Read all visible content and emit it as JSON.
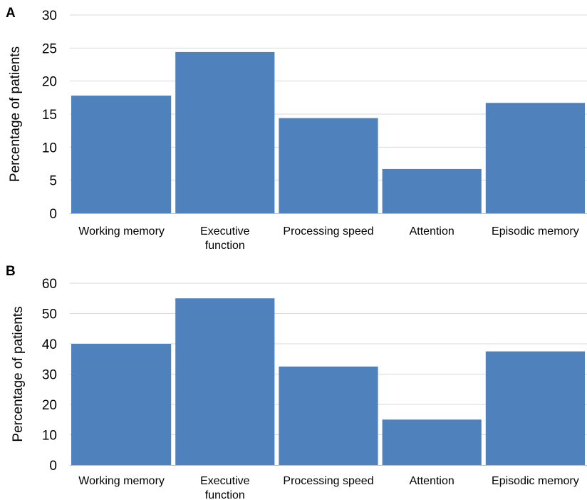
{
  "chart_data": [
    {
      "type": "bar",
      "panel": "A",
      "ylabel": "Percentage of patients",
      "xlabel": "",
      "title": "",
      "categories": [
        "Working memory",
        "Executive function",
        "Processing speed",
        "Attention",
        "Episodic memory"
      ],
      "values": [
        17.8,
        24.4,
        14.4,
        6.7,
        16.7
      ],
      "ylim": [
        0,
        30
      ],
      "yticks": [
        0,
        5,
        10,
        15,
        20,
        25,
        30
      ],
      "grid": true,
      "bar_color": "#4f81bd"
    },
    {
      "type": "bar",
      "panel": "B",
      "ylabel": "Percentage of patients",
      "xlabel": "",
      "title": "",
      "categories": [
        "Working memory",
        "Executive function",
        "Processing speed",
        "Attention",
        "Episodic memory"
      ],
      "values": [
        40.0,
        55.0,
        32.5,
        15.0,
        37.5
      ],
      "ylim": [
        0,
        60
      ],
      "yticks": [
        0,
        10,
        20,
        30,
        40,
        50,
        60
      ],
      "grid": true,
      "bar_color": "#4f81bd"
    }
  ]
}
